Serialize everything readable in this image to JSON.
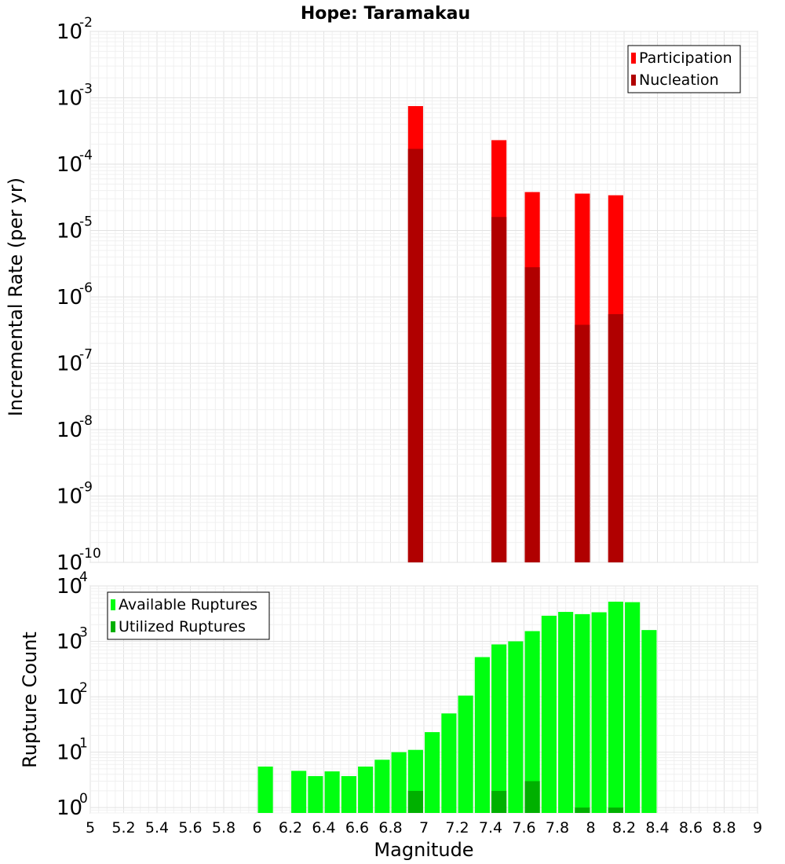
{
  "chart_data": [
    {
      "type": "bar",
      "title": "Hope: Taramakau",
      "xlabel": "",
      "ylabel": "Incremental Rate (per yr)",
      "yscale": "log",
      "ylim": [
        1e-10,
        0.01
      ],
      "xlim": [
        5,
        9
      ],
      "grid": true,
      "legend_position": "top-right",
      "y_tick_labels": [
        {
          "base": "10",
          "exp": "-10"
        },
        {
          "base": "10",
          "exp": "-9"
        },
        {
          "base": "10",
          "exp": "-8"
        },
        {
          "base": "10",
          "exp": "-7"
        },
        {
          "base": "10",
          "exp": "-6"
        },
        {
          "base": "10",
          "exp": "-5"
        },
        {
          "base": "10",
          "exp": "-4"
        },
        {
          "base": "10",
          "exp": "-3"
        },
        {
          "base": "10",
          "exp": "-2"
        }
      ],
      "series": [
        {
          "name": "Participation",
          "color": "#ff0000",
          "points": [
            {
              "x": 6.95,
              "y": 0.00075
            },
            {
              "x": 7.45,
              "y": 0.00023
            },
            {
              "x": 7.65,
              "y": 3.8e-05
            },
            {
              "x": 7.95,
              "y": 3.6e-05
            },
            {
              "x": 8.15,
              "y": 3.4e-05
            }
          ]
        },
        {
          "name": "Nucleation",
          "color": "#b00000",
          "points": [
            {
              "x": 6.95,
              "y": 0.00017
            },
            {
              "x": 7.45,
              "y": 1.6e-05
            },
            {
              "x": 7.65,
              "y": 2.8e-06
            },
            {
              "x": 7.95,
              "y": 3.8e-07
            },
            {
              "x": 8.15,
              "y": 5.5e-07
            }
          ]
        }
      ]
    },
    {
      "type": "bar",
      "title": "",
      "xlabel": "Magnitude",
      "ylabel": "Rupture Count",
      "yscale": "log",
      "ylim": [
        0.8,
        10000
      ],
      "xlim": [
        5,
        9
      ],
      "grid": true,
      "legend_position": "top-left",
      "x_tick_labels": [
        "5",
        "5.2",
        "5.4",
        "5.6",
        "5.8",
        "6",
        "6.2",
        "6.4",
        "6.6",
        "6.8",
        "7",
        "7.2",
        "7.4",
        "7.6",
        "7.8",
        "8",
        "8.2",
        "8.4",
        "8.6",
        "8.8",
        "9"
      ],
      "y_tick_labels": [
        {
          "base": "10",
          "exp": "0"
        },
        {
          "base": "10",
          "exp": "1"
        },
        {
          "base": "10",
          "exp": "2"
        },
        {
          "base": "10",
          "exp": "3"
        },
        {
          "base": "10",
          "exp": "4"
        }
      ],
      "series": [
        {
          "name": "Available Ruptures",
          "color": "#00ff10",
          "points": [
            {
              "x": 6.05,
              "y": 5.5
            },
            {
              "x": 6.25,
              "y": 4.6
            },
            {
              "x": 6.35,
              "y": 3.7
            },
            {
              "x": 6.45,
              "y": 4.5
            },
            {
              "x": 6.55,
              "y": 3.7
            },
            {
              "x": 6.65,
              "y": 5.5
            },
            {
              "x": 6.75,
              "y": 7.3
            },
            {
              "x": 6.85,
              "y": 10
            },
            {
              "x": 6.95,
              "y": 11
            },
            {
              "x": 7.05,
              "y": 23
            },
            {
              "x": 7.15,
              "y": 50
            },
            {
              "x": 7.25,
              "y": 105
            },
            {
              "x": 7.35,
              "y": 520
            },
            {
              "x": 7.45,
              "y": 880
            },
            {
              "x": 7.55,
              "y": 1000
            },
            {
              "x": 7.65,
              "y": 1530
            },
            {
              "x": 7.75,
              "y": 2900
            },
            {
              "x": 7.85,
              "y": 3400
            },
            {
              "x": 7.95,
              "y": 3100
            },
            {
              "x": 8.05,
              "y": 3350
            },
            {
              "x": 8.15,
              "y": 5200
            },
            {
              "x": 8.25,
              "y": 5100
            },
            {
              "x": 8.35,
              "y": 1600
            }
          ]
        },
        {
          "name": "Utilized Ruptures",
          "color": "#00b000",
          "points": [
            {
              "x": 6.95,
              "y": 2
            },
            {
              "x": 7.45,
              "y": 2
            },
            {
              "x": 7.65,
              "y": 3
            },
            {
              "x": 7.95,
              "y": 1
            },
            {
              "x": 8.15,
              "y": 1
            }
          ]
        }
      ]
    }
  ]
}
